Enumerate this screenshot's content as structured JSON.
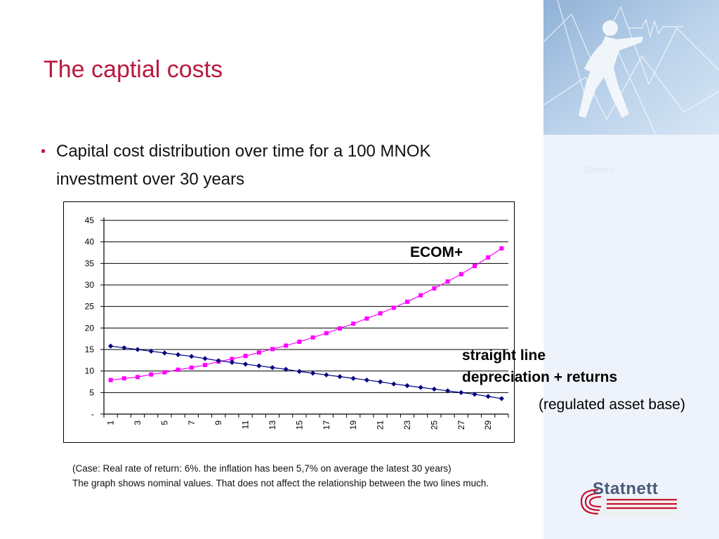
{
  "slide": {
    "title": "The captial costs",
    "bullet_line1": "Capital cost distribution over time for a 100 MNOK",
    "bullet_line2": "investment over 30 years",
    "note_line1": "(Case: Real rate of return: 6%. the inflation has been 5,7% on average the latest 30 years)",
    "note_line2": "The graph shows nominal values. That does not affect the relationship between the two lines much.",
    "watermark": "Statnett",
    "logo_text": "Statnett",
    "colors": {
      "title": "#b8193f",
      "ecom_series": "#ff00ff",
      "straight_line_series": "#000080",
      "logo_red": "#c8102e"
    }
  },
  "annotations": {
    "ecom": "ECOM+",
    "straight_line_1": "straight line",
    "straight_line_2": "depreciation + returns",
    "regulated": "(regulated asset base)"
  },
  "chart_data": {
    "type": "line",
    "x": [
      1,
      2,
      3,
      4,
      5,
      6,
      7,
      8,
      9,
      10,
      11,
      12,
      13,
      14,
      15,
      16,
      17,
      18,
      19,
      20,
      21,
      22,
      23,
      24,
      25,
      26,
      27,
      28,
      29,
      30
    ],
    "x_tick_labels": [
      "1",
      "3",
      "5",
      "7",
      "9",
      "11",
      "13",
      "15",
      "17",
      "19",
      "21",
      "23",
      "25",
      "27",
      "29"
    ],
    "y_tick_labels": [
      "-",
      "5",
      "10",
      "15",
      "20",
      "25",
      "30",
      "35",
      "40",
      "45"
    ],
    "ylim": [
      0,
      45
    ],
    "grid": true,
    "series": [
      {
        "name": "ECOM+",
        "color": "#ff00ff",
        "marker": "square",
        "values": [
          7.9,
          8.3,
          8.6,
          9.2,
          9.7,
          10.3,
          10.8,
          11.4,
          12.2,
          12.8,
          13.5,
          14.3,
          15.1,
          15.9,
          16.8,
          17.8,
          18.8,
          19.9,
          21.0,
          22.2,
          23.4,
          24.7,
          26.1,
          27.6,
          29.2,
          30.8,
          32.5,
          34.4,
          36.4,
          38.5
        ]
      },
      {
        "name": "straight line depreciation + returns (regulated asset base)",
        "color": "#000080",
        "marker": "diamond",
        "values": [
          15.8,
          15.4,
          15.0,
          14.6,
          14.2,
          13.8,
          13.4,
          12.9,
          12.4,
          12.0,
          11.6,
          11.2,
          10.8,
          10.4,
          9.9,
          9.5,
          9.1,
          8.7,
          8.3,
          7.9,
          7.5,
          7.0,
          6.6,
          6.2,
          5.8,
          5.4,
          5.0,
          4.6,
          4.1,
          3.6
        ]
      }
    ]
  }
}
